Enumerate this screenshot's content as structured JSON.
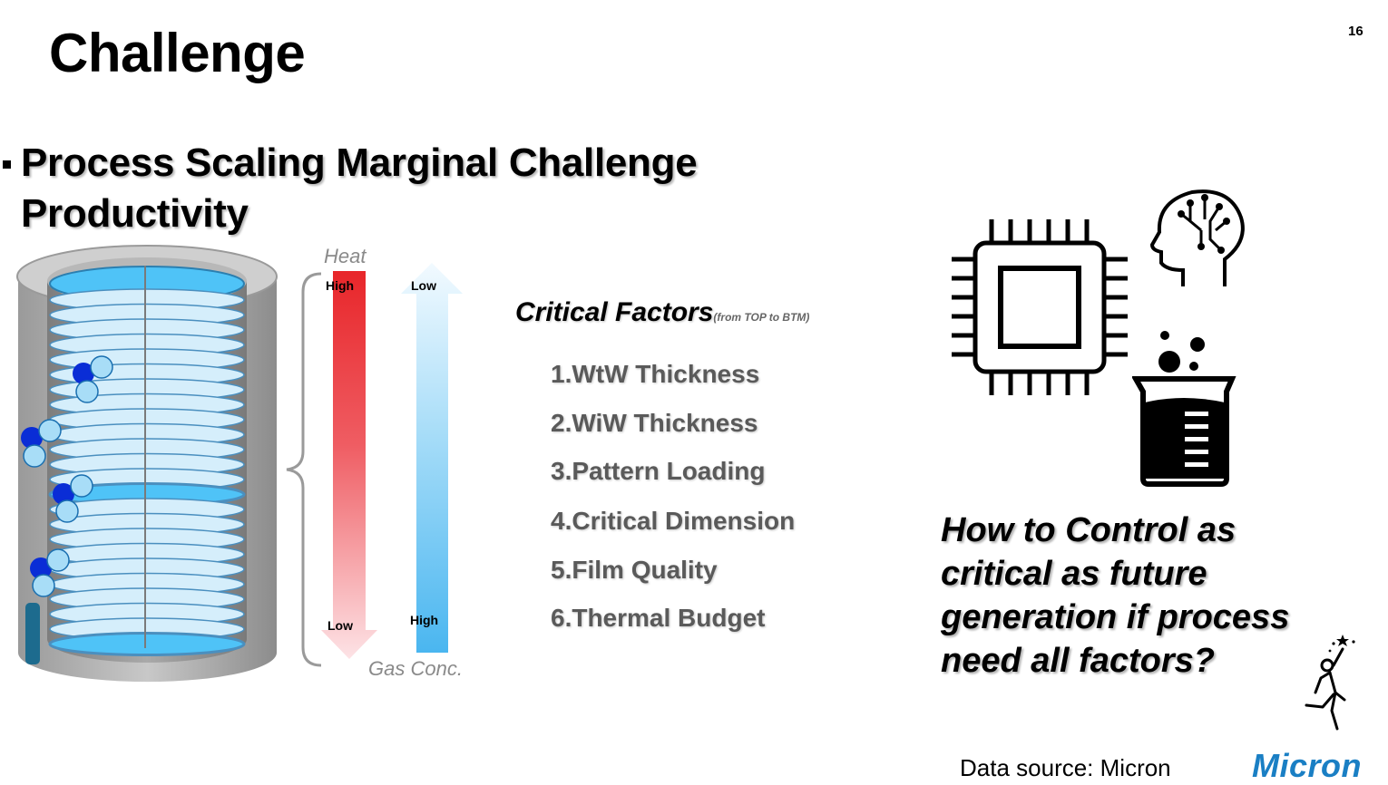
{
  "slide": {
    "title": "Challenge",
    "page_number": "16"
  },
  "bullet": {
    "line1": "Process Scaling Marginal Challenge",
    "line2": "Productivity"
  },
  "gradient_labels": {
    "heat": "Heat",
    "gas_conc": "Gas Conc.",
    "heat_top": "High",
    "heat_bottom": "Low",
    "gas_top": "Low",
    "gas_bottom": "High"
  },
  "critical_factors": {
    "title": "Critical Factors",
    "subtitle": "(from TOP to BTM)",
    "items": [
      "1.WtW Thickness",
      "2.WiW Thickness",
      "3.Pattern Loading",
      "4.Critical Dimension",
      "5.Film Quality",
      "6.Thermal Budget"
    ]
  },
  "question": {
    "line1": "How to Control as",
    "line2": "critical as future",
    "line3": "generation if process",
    "line4": "need all factors?"
  },
  "footer": {
    "source": "Data source: Micron",
    "logo_text": "Micron"
  },
  "colors": {
    "heat_high": "#e8262a",
    "gas_high": "#4ab6f0",
    "wafer_blue": "#4fc3f7",
    "logo_blue": "#1a7fc4"
  },
  "icons": [
    "cpu-chip-icon",
    "brain-circuit-icon",
    "beaker-icon",
    "person-reaching-star-icon"
  ]
}
